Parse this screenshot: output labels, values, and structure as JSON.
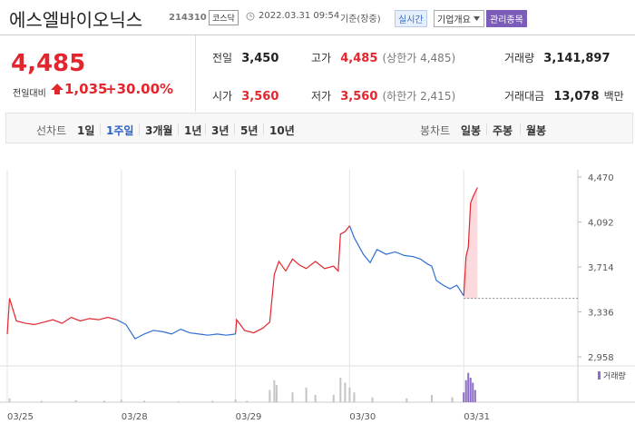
{
  "header": {
    "title": "에스엘바이오닉스",
    "code": "214310",
    "market": "코스닥",
    "datetime": "2022.03.31 09:54",
    "basis": "기준(장중)",
    "buttons": [
      "실시간",
      "기업개요",
      "관리종목"
    ]
  },
  "price": {
    "current": "4,485",
    "change_label": "전일대비",
    "change": "1,035",
    "change_rate": "+30.00%"
  },
  "info": [
    {
      "label": "전일",
      "value": "3,450"
    },
    {
      "label": "고가",
      "value": "4,485",
      "note": "(상한가 4,485)"
    },
    {
      "label": "거래량",
      "value": "3,141,897"
    },
    {
      "label": "시가",
      "value": "3,560"
    },
    {
      "label": "저가",
      "value": "3,560",
      "note": "(하한가 2,415)"
    },
    {
      "label": "거래대금",
      "value": "13,078",
      "note": "백만"
    }
  ],
  "tabs": {
    "line_label": "선차트",
    "line_periods": [
      "1일",
      "1주일",
      "3개월",
      "1년",
      "3년",
      "5년",
      "10년"
    ],
    "selected": "1주일",
    "candle_label": "봉차트",
    "candle_periods": [
      "일봉",
      "주봉",
      "월봉"
    ]
  },
  "chart_data": {
    "type": "line",
    "xlim": [
      0,
      5
    ],
    "xticks": [
      {
        "value": 0,
        "label": "03/25"
      },
      {
        "value": 1,
        "label": "03/28"
      },
      {
        "value": 2,
        "label": "03/29"
      },
      {
        "value": 3,
        "label": "03/30"
      },
      {
        "value": 4,
        "label": "03/31"
      }
    ],
    "ylim": [
      2905,
      4530
    ],
    "yticks": [
      {
        "value": 2958,
        "label": "2,958"
      },
      {
        "value": 3336,
        "label": "3,336"
      },
      {
        "value": 3714,
        "label": "3,714"
      },
      {
        "value": 4092,
        "label": "4,092"
      },
      {
        "value": 4470,
        "label": "4,470"
      }
    ],
    "grid": true,
    "series": [
      {
        "color": "#e3262e",
        "x": [
          0,
          0.02,
          0.08,
          0.16,
          0.24,
          0.32,
          0.4,
          0.48,
          0.56,
          0.64,
          0.72,
          0.8,
          0.88,
          0.96,
          1.5,
          2.0,
          2.01,
          2.08,
          2.16,
          2.24,
          2.3,
          2.34,
          2.38,
          2.44,
          2.5,
          2.56,
          2.62,
          2.7,
          2.78,
          2.86,
          2.9,
          2.92,
          2.96,
          3.0,
          3.5,
          4.0,
          4.02,
          4.04,
          4.06,
          4.08,
          4.12
        ],
        "values": [
          3150,
          3450,
          3260,
          3240,
          3230,
          3250,
          3270,
          3240,
          3290,
          3260,
          3280,
          3270,
          3290,
          3270,
          null,
          3150,
          3270,
          3180,
          3160,
          3200,
          3250,
          3650,
          3760,
          3680,
          3780,
          3730,
          3700,
          3760,
          3700,
          3720,
          3680,
          3990,
          4010,
          4060,
          null,
          3470,
          3800,
          3880,
          4250,
          4300,
          4380
        ]
      },
      {
        "color": "#2f6fd0",
        "x": [
          0.96,
          1.04,
          1.12,
          1.2,
          1.28,
          1.36,
          1.44,
          1.52,
          1.6,
          1.68,
          1.76,
          1.84,
          1.92,
          2.0,
          2.5,
          3.0,
          3.04,
          3.12,
          3.18,
          3.24,
          3.32,
          3.4,
          3.48,
          3.56,
          3.62,
          3.68,
          3.72,
          3.76,
          3.82,
          3.88,
          3.94,
          4.0
        ],
        "values": [
          3270,
          3230,
          3110,
          3150,
          3180,
          3170,
          3150,
          3190,
          3160,
          3150,
          3140,
          3150,
          3140,
          3150,
          null,
          4060,
          3960,
          3820,
          3750,
          3860,
          3820,
          3840,
          3810,
          3800,
          3780,
          3740,
          3720,
          3600,
          3560,
          3530,
          3560,
          3470
        ]
      }
    ],
    "reference_line": {
      "value": 3450,
      "x_start": 4,
      "color": "#888888",
      "fill_color": "#fbd9dc"
    },
    "volume": {
      "label": "거래량",
      "color": "#c4c4c4",
      "last_day_color": "#8d6dc9",
      "ylim": [
        0,
        65
      ],
      "x": [
        0.02,
        0.3,
        0.6,
        0.85,
        1.0,
        1.2,
        1.5,
        1.8,
        2.0,
        2.1,
        2.3,
        2.34,
        2.36,
        2.5,
        2.62,
        2.7,
        2.86,
        2.92,
        2.96,
        3.0,
        3.04,
        3.2,
        3.5,
        3.72,
        3.9,
        4.0,
        4.02,
        4.04,
        4.06,
        4.08,
        4.1
      ],
      "values": [
        8,
        3,
        4,
        3,
        5,
        3,
        2,
        3,
        6,
        3,
        25,
        45,
        35,
        20,
        30,
        15,
        15,
        50,
        40,
        30,
        20,
        10,
        8,
        15,
        10,
        20,
        45,
        60,
        50,
        40,
        25
      ]
    }
  }
}
